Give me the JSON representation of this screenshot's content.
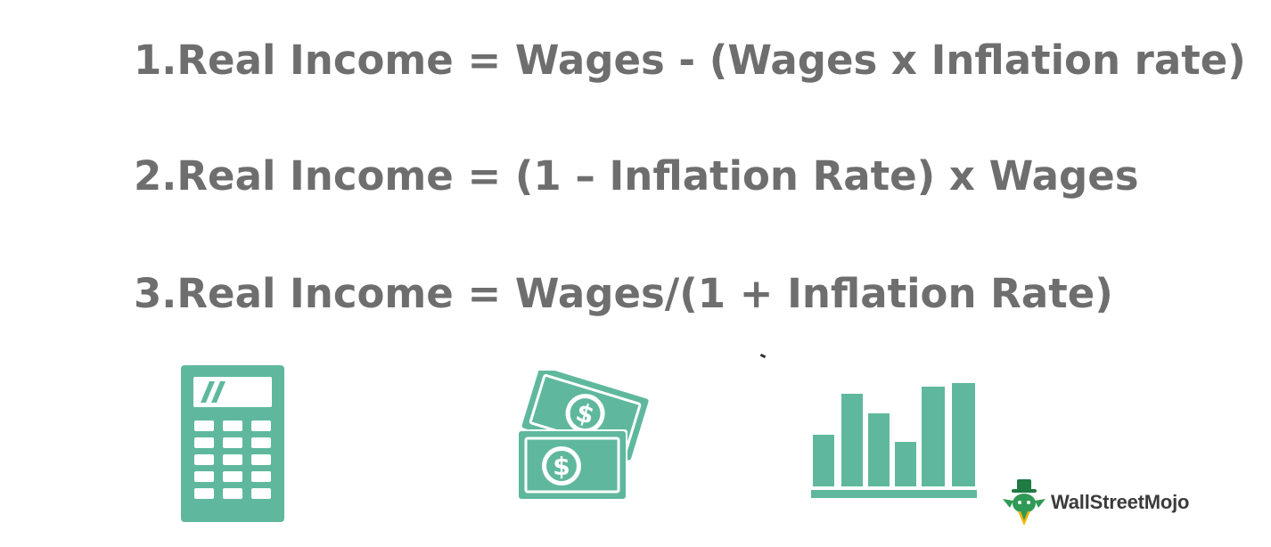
{
  "formulas": [
    "1.Real Income = Wages - (Wages x Inflation rate)",
    "2.Real Income = (1 – Inflation Rate) x Wages",
    "3.Real Income = Wages/(1 + Inflation Rate)"
  ],
  "icons": [
    "calculator-icon",
    "money-bills-icon",
    "bar-chart-icon",
    "wallstreetmojo-logo"
  ],
  "colors": {
    "text": "#6e6e6e",
    "icon": "#5fb89e",
    "icon_light": "#ffffff"
  },
  "brand": {
    "name": "WallStreetMojo"
  }
}
